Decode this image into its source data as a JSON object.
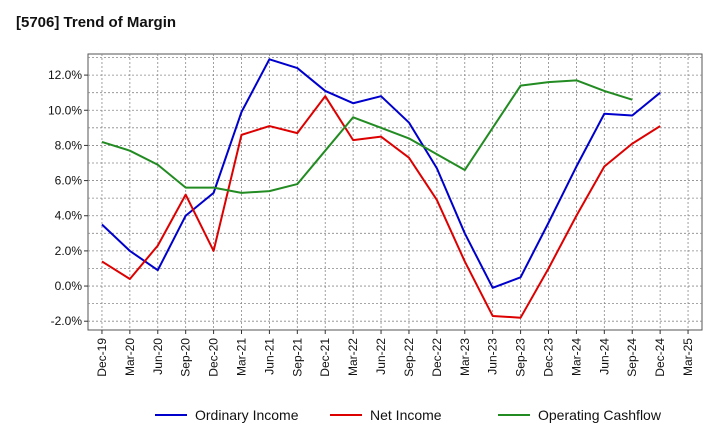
{
  "chart_data": {
    "type": "line",
    "title": "[5706]  Trend of Margin",
    "xlabel": "",
    "ylabel": "",
    "ylim": [
      -2.5,
      13.2
    ],
    "yticks": [
      -2.0,
      0.0,
      2.0,
      4.0,
      6.0,
      8.0,
      10.0,
      12.0
    ],
    "ytick_labels": [
      "-2.0%",
      "0.0%",
      "2.0%",
      "4.0%",
      "6.0%",
      "8.0%",
      "10.0%",
      "12.0%"
    ],
    "x_tick_labels": [
      "Dec-19",
      "Mar-20",
      "Jun-20",
      "Sep-20",
      "Dec-20",
      "Mar-21",
      "Jun-21",
      "Sep-21",
      "Dec-21",
      "Mar-22",
      "Jun-22",
      "Sep-22",
      "Dec-22",
      "Mar-23",
      "Jun-23",
      "Sep-23",
      "Dec-23",
      "Mar-24",
      "Jun-24",
      "Sep-24",
      "Dec-24",
      "Mar-25"
    ],
    "grid": true,
    "legend_position": "bottom",
    "series": [
      {
        "name": "Ordinary Income",
        "color": "#0000cc",
        "values": [
          3.5,
          2.0,
          0.9,
          4.0,
          5.3,
          9.9,
          12.9,
          12.4,
          11.1,
          10.4,
          10.8,
          9.3,
          6.7,
          3.0,
          -0.1,
          0.5,
          3.6,
          6.8,
          9.8,
          9.7,
          11.0,
          null
        ]
      },
      {
        "name": "Net Income",
        "color": "#dd0000",
        "values": [
          1.4,
          0.4,
          2.3,
          5.2,
          2.0,
          8.6,
          9.1,
          8.7,
          10.8,
          8.3,
          8.5,
          7.3,
          4.9,
          1.4,
          -1.7,
          -1.8,
          1.0,
          4.0,
          6.8,
          8.1,
          9.1,
          null
        ]
      },
      {
        "name": "Operating Cashflow",
        "color": "#228b22",
        "values": [
          8.2,
          7.7,
          6.9,
          5.6,
          5.6,
          5.3,
          5.4,
          5.8,
          7.7,
          9.6,
          9.0,
          8.4,
          7.5,
          6.6,
          9.0,
          11.4,
          11.6,
          11.7,
          11.1,
          10.6,
          null,
          null
        ]
      }
    ]
  }
}
